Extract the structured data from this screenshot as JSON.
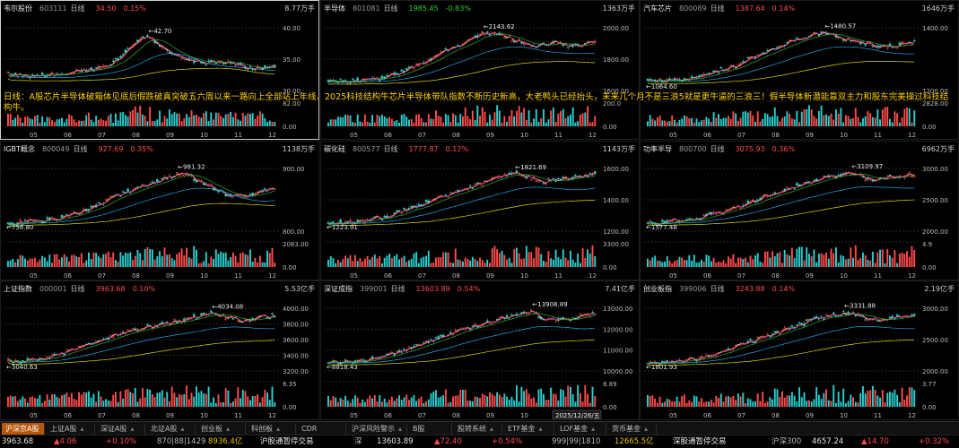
{
  "overlay_text": "日线：A股芯片半导体破箱体见底后假跌破真突破五六周以来一路向上全部站上年线，2025科技结构牛芯片半导体带队指数不断历史新高，大老鸭头已经抬头，未来几个月不是三浪5就是更牛逼的三浪三！假半导体新潜能靠双主力和股东完美操过科技结构牛。",
  "panels": [
    {
      "name": "韦尔股份",
      "code": "603111",
      "period": "日线",
      "price": "34.50",
      "change": "0.15%",
      "dir": "up",
      "volume": "8.77万手",
      "high_label": "42.70",
      "low_label": "",
      "axis": [
        "40.00",
        "35.00",
        "30.00"
      ],
      "vol_axis": [
        "82.00",
        "0.00"
      ],
      "selected": true,
      "trend": [
        0.2,
        0.18,
        0.16,
        0.18,
        0.2,
        0.22,
        0.25,
        0.28,
        0.35,
        0.55,
        0.75,
        0.9,
        0.7,
        0.55,
        0.45,
        0.42,
        0.4,
        0.43,
        0.38,
        0.32,
        0.3,
        0.35
      ]
    },
    {
      "name": "半导体",
      "code": "801081",
      "period": "日线",
      "price": "1985.45",
      "change": "-0.83%",
      "dir": "dn",
      "volume": "1363万手",
      "high_label": "2143.62",
      "low_label": "",
      "axis": [
        "2000.00",
        "1800.00",
        "1600.00"
      ],
      "vol_axis": [
        "200.0",
        "0.00"
      ],
      "selected": false,
      "trend": [
        0.08,
        0.07,
        0.09,
        0.1,
        0.12,
        0.18,
        0.25,
        0.35,
        0.45,
        0.58,
        0.7,
        0.8,
        0.9,
        0.95,
        0.86,
        0.78,
        0.7,
        0.74,
        0.78,
        0.72,
        0.74,
        0.78
      ]
    },
    {
      "name": "汽车芯片",
      "code": "800089",
      "period": "日线",
      "price": "1387.64",
      "change": "0.14%",
      "dir": "up",
      "volume": "1646万手",
      "high_label": "1480.57",
      "low_label": "1064.60",
      "axis": [
        "1400.00",
        "1200.00"
      ],
      "vol_axis": [
        "2828.00",
        "0.00"
      ],
      "selected": false,
      "trend": [
        0.1,
        0.08,
        0.09,
        0.12,
        0.16,
        0.22,
        0.28,
        0.36,
        0.46,
        0.56,
        0.66,
        0.76,
        0.84,
        0.9,
        0.95,
        0.86,
        0.8,
        0.76,
        0.72,
        0.7,
        0.74,
        0.78
      ]
    },
    {
      "name": "IGBT概念",
      "code": "800049",
      "period": "日线",
      "price": "927.69",
      "change": "0.35%",
      "dir": "up",
      "volume": "1138万手",
      "high_label": "981.32",
      "low_label": "756.80",
      "axis": [
        "900.00",
        "800.00"
      ],
      "vol_axis": [
        "2083.00",
        "0.00"
      ],
      "selected": false,
      "trend": [
        0.05,
        0.06,
        0.08,
        0.1,
        0.14,
        0.2,
        0.28,
        0.38,
        0.48,
        0.58,
        0.66,
        0.74,
        0.82,
        0.9,
        0.95,
        0.8,
        0.7,
        0.58,
        0.52,
        0.55,
        0.62,
        0.66
      ]
    },
    {
      "name": "碳化硅",
      "code": "800577",
      "period": "日线",
      "price": "1777.87",
      "change": "0.12%",
      "dir": "up",
      "volume": "1143万手",
      "high_label": "1821.69",
      "low_label": "1223.91",
      "axis": [
        "1600.00",
        "1400.00",
        "1200.00"
      ],
      "vol_axis": [
        "3300.00",
        "0.00"
      ],
      "selected": false,
      "trend": [
        0.05,
        0.06,
        0.07,
        0.1,
        0.14,
        0.2,
        0.28,
        0.36,
        0.44,
        0.52,
        0.6,
        0.68,
        0.76,
        0.84,
        0.92,
        0.95,
        0.86,
        0.8,
        0.82,
        0.86,
        0.9,
        0.94
      ]
    },
    {
      "name": "功率半导",
      "code": "800700",
      "period": "日线",
      "price": "3075.93",
      "change": "0.36%",
      "dir": "up",
      "volume": "6962万手",
      "high_label": "3109.97",
      "low_label": "1577.48",
      "axis": [
        "3000.00",
        "2500.00",
        "2000.00"
      ],
      "vol_axis": [
        "4.9",
        "0.00"
      ],
      "selected": false,
      "trend": [
        0.05,
        0.06,
        0.08,
        0.1,
        0.14,
        0.2,
        0.26,
        0.34,
        0.42,
        0.5,
        0.58,
        0.66,
        0.74,
        0.8,
        0.86,
        0.9,
        0.95,
        0.86,
        0.84,
        0.88,
        0.9,
        0.92
      ]
    },
    {
      "name": "上证指数",
      "code": "000001",
      "period": "日线",
      "price": "3963.68",
      "change": "0.10%",
      "dir": "up",
      "volume": "5.53亿手",
      "high_label": "4034.08",
      "low_label": "3040.63",
      "axis": [
        "4000.00",
        "3800.00",
        "3600.00",
        "3400.00",
        "3200.00"
      ],
      "vol_axis": [
        "6.35",
        "0.00"
      ],
      "selected": false,
      "trend": [
        0.08,
        0.07,
        0.1,
        0.14,
        0.2,
        0.28,
        0.36,
        0.44,
        0.52,
        0.58,
        0.64,
        0.7,
        0.74,
        0.78,
        0.84,
        0.9,
        0.95,
        0.88,
        0.84,
        0.82,
        0.86,
        0.9
      ]
    },
    {
      "name": "深证成指",
      "code": "399001",
      "period": "日线",
      "price": "13603.89",
      "change": "0.54%",
      "dir": "up",
      "volume": "7.41亿手",
      "high_label": "13908.89",
      "low_label": "8818.43",
      "axis": [
        "13000.00",
        "12000.00",
        "11000.00",
        "10000.00"
      ],
      "vol_axis": [
        "8.89",
        "0.00"
      ],
      "selected": false,
      "trend": [
        0.05,
        0.06,
        0.07,
        0.1,
        0.14,
        0.2,
        0.28,
        0.36,
        0.44,
        0.52,
        0.6,
        0.68,
        0.74,
        0.8,
        0.86,
        0.92,
        0.95,
        0.86,
        0.82,
        0.84,
        0.9,
        0.94
      ]
    },
    {
      "name": "创业板指",
      "code": "399006",
      "period": "日线",
      "price": "3243.88",
      "change": "0.14%",
      "dir": "up",
      "volume": "2.19亿手",
      "high_label": "3331.88",
      "low_label": "1801.93",
      "axis": [
        "3000.00",
        "2500.00",
        "2000.00"
      ],
      "vol_axis": [
        "3.77",
        "0.00"
      ],
      "selected": false,
      "trend": [
        0.04,
        0.05,
        0.06,
        0.08,
        0.12,
        0.18,
        0.26,
        0.34,
        0.42,
        0.5,
        0.58,
        0.66,
        0.74,
        0.82,
        0.88,
        0.94,
        0.95,
        0.86,
        0.82,
        0.84,
        0.88,
        0.92
      ]
    }
  ],
  "month_labels": [
    "05",
    "06",
    "07",
    "08",
    "09",
    "10",
    "11",
    "12"
  ],
  "date_badge": "2025/12/26/五",
  "tabs": [
    {
      "label": "沪深京A股",
      "active": true
    },
    {
      "label": "上证A股",
      "active": false
    },
    {
      "label": "深证A股",
      "active": false
    },
    {
      "label": "北证A股",
      "active": false
    },
    {
      "label": "创业板",
      "active": false
    },
    {
      "label": "科创板",
      "active": false
    },
    {
      "label": "CDR",
      "active": false
    },
    {
      "label": "沪深风险警示",
      "active": false
    },
    {
      "label": "B股",
      "active": false
    },
    {
      "label": "股转系统",
      "active": false
    },
    {
      "label": "ETF基金",
      "active": false
    },
    {
      "label": "LOF基金",
      "active": false
    },
    {
      "label": "货币基金",
      "active": false
    }
  ],
  "ticker": {
    "sh_price": "3963.68",
    "sh_change": "▲4.06",
    "sh_pct": "+0.10%",
    "sh_count": "870|88|1429",
    "sh_amount": "8936.4亿",
    "sh_label": "沪股通暂停交易",
    "sz_tag": "深",
    "sz_price": "13603.89",
    "sz_change": "▲72.40",
    "sz_pct": "+0.54%",
    "sz_count": "999|99|1810",
    "sz_amount": "12665.5亿",
    "sz_label": "深股通暂停交易",
    "hs_tag": "沪深300",
    "hs_price": "4657.24",
    "hs_change": "▲14.70",
    "hs_pct": "+0.32%"
  },
  "colors": {
    "up": "#ff4b4b",
    "down": "#27d027",
    "ma5": "#ffffff",
    "ma10": "#e8c200",
    "ma20": "#d000d0",
    "ma60": "#22cc22",
    "ma120": "#20b8ff",
    "ma250": "#f2f200"
  }
}
